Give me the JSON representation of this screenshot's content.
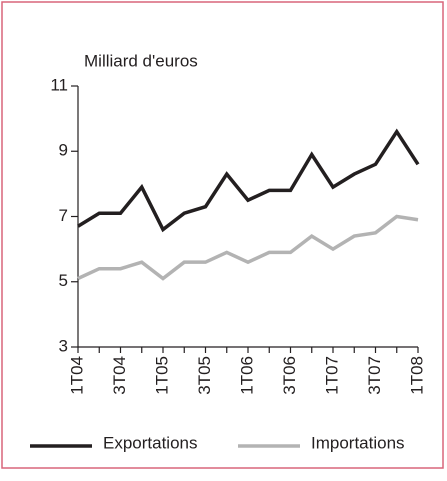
{
  "chart_data": {
    "type": "line",
    "y_label": "Milliard d'euros",
    "categories": [
      "1T04",
      null,
      "3T04",
      null,
      "1T05",
      null,
      "3T05",
      null,
      "1T06",
      null,
      "3T06",
      null,
      "1T07",
      null,
      "3T07",
      null,
      "1T08"
    ],
    "series": [
      {
        "name": "Exportations",
        "color": "#231f20",
        "values": [
          6.7,
          7.1,
          7.1,
          7.9,
          6.6,
          7.1,
          7.3,
          8.3,
          7.5,
          7.8,
          7.8,
          8.9,
          7.9,
          8.3,
          8.6,
          9.6,
          8.6
        ]
      },
      {
        "name": "Importations",
        "color": "#b3b3b3",
        "values": [
          5.1,
          5.4,
          5.4,
          5.6,
          5.1,
          5.6,
          5.6,
          5.9,
          5.6,
          5.9,
          5.9,
          6.4,
          6.0,
          6.4,
          6.5,
          7.0,
          6.9
        ]
      }
    ],
    "ylim": [
      3,
      11
    ],
    "yticks": [
      3,
      5,
      7,
      9,
      11
    ],
    "grid": false
  }
}
